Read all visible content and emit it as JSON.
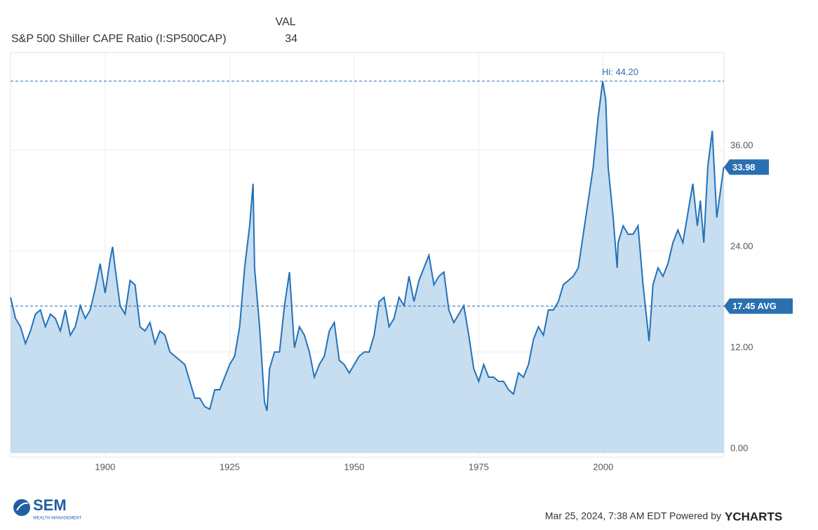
{
  "chart_data": {
    "type": "area",
    "header_label": "VAL",
    "series": [
      {
        "name": "S&P 500 Shiller CAPE Ratio (I:SP500CAP)",
        "color": "#2272b9",
        "fill": "#c7ddf0",
        "values": [
          18.5,
          16,
          15,
          13,
          14.5,
          16.5,
          17,
          15,
          16.5,
          16,
          14.5,
          17,
          14,
          15,
          17.5,
          16,
          17,
          19.5,
          22.5,
          19,
          23,
          24.5,
          22,
          17.5,
          16.5,
          20.5,
          20,
          15,
          14.5,
          15.5,
          13,
          14.5,
          14,
          12,
          11.5,
          11,
          10.5,
          8.5,
          6.5,
          6.5,
          5.5,
          5.2,
          7.5,
          7.5,
          9,
          10.5,
          11.5,
          15,
          22,
          27,
          32,
          22,
          15,
          6,
          5,
          10,
          12,
          12,
          17.5,
          21.5,
          12.5,
          15,
          14,
          12,
          9,
          10.5,
          11.5,
          14.5,
          15.5,
          11,
          10.5,
          9.5,
          10.5,
          11.5,
          12,
          12,
          14,
          18,
          18.5,
          15,
          16,
          18.5,
          17.5,
          21,
          18,
          20.5,
          22,
          23.5,
          20,
          21,
          21.5,
          17,
          15.5,
          16.5,
          17.5,
          14,
          10,
          8.5,
          10.5,
          9,
          9,
          8.5,
          8.5,
          7.5,
          7,
          9.5,
          9,
          10.5,
          13.5,
          15,
          14,
          17,
          17,
          18,
          20,
          20.5,
          21,
          22,
          26,
          30,
          34,
          40,
          44.2,
          42,
          34,
          28,
          22,
          25,
          27,
          26,
          26,
          27,
          20,
          13.3,
          20,
          22,
          21,
          22.5,
          25,
          26.5,
          25,
          28.5,
          32,
          27,
          30,
          25,
          34,
          38.3,
          28,
          31,
          33.98
        ]
      }
    ],
    "x": [
      1881,
      1882,
      1883,
      1884,
      1885,
      1886,
      1887,
      1888,
      1889,
      1890,
      1891,
      1892,
      1893,
      1894,
      1895,
      1896,
      1897,
      1898,
      1899,
      1900,
      1901,
      1901.5,
      1902,
      1903,
      1904,
      1905,
      1906,
      1907,
      1908,
      1909,
      1910,
      1911,
      1912,
      1913,
      1914,
      1915,
      1916,
      1917,
      1918,
      1919,
      1920,
      1921,
      1922,
      1923,
      1924,
      1925,
      1926,
      1927,
      1928,
      1929,
      1929.7,
      1930,
      1931,
      1932,
      1932.5,
      1933,
      1934,
      1935,
      1936,
      1937,
      1938,
      1939,
      1940,
      1941,
      1942,
      1943,
      1944,
      1945,
      1946,
      1947,
      1948,
      1949,
      1950,
      1951,
      1952,
      1953,
      1954,
      1955,
      1956,
      1957,
      1958,
      1959,
      1960,
      1961,
      1962,
      1963,
      1964,
      1965,
      1966,
      1967,
      1968,
      1969,
      1970,
      1971,
      1972,
      1973,
      1974,
      1975,
      1976,
      1977,
      1978,
      1979,
      1980,
      1981,
      1982,
      1983,
      1984,
      1985,
      1986,
      1987,
      1988,
      1989,
      1990,
      1991,
      1992,
      1993,
      1994,
      1995,
      1996,
      1997,
      1998,
      1999,
      1999.9,
      2000.5,
      2001,
      2002,
      2002.8,
      2003,
      2004,
      2005,
      2006,
      2007,
      2008,
      2009.2,
      2010,
      2011,
      2012,
      2013,
      2014,
      2015,
      2016,
      2017,
      2018,
      2018.9,
      2019.5,
      2020.2,
      2021,
      2021.9,
      2022.8,
      2023.5,
      2024.2
    ],
    "xlim": [
      1881,
      2024.25
    ],
    "xticks": [
      1900,
      1925,
      1950,
      1975,
      2000
    ],
    "ylim": [
      -0.5,
      47.6
    ],
    "yticks": [
      {
        "value": 0,
        "label": "0.00"
      },
      {
        "value": 12,
        "label": "12.00"
      },
      {
        "value": 24,
        "label": "24.00"
      },
      {
        "value": 36,
        "label": "36.00"
      }
    ],
    "grid": true,
    "high": {
      "value": 44.2,
      "label": "Hi: 44.20"
    },
    "average": {
      "value": 17.45,
      "label": "17.45 AVG"
    },
    "badge_color": "#2a6fb0"
  },
  "footer": {
    "logo": "SEM",
    "logo_sub": "WEALTH MANAGEMENT",
    "timestamp": "Mar 25, 2024, 7:38 AM EDT Powered by",
    "brand": "YCHARTS"
  }
}
